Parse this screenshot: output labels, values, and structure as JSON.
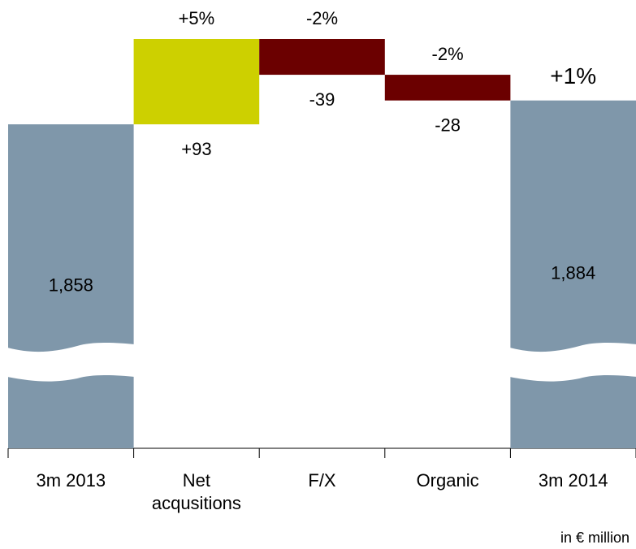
{
  "chart_data": {
    "type": "waterfall",
    "categories": [
      "3m 2013",
      "Net acqusitions",
      "F/X",
      "Organic",
      "3m 2014"
    ],
    "values": [
      1858,
      93,
      -39,
      -28,
      1884
    ],
    "value_labels": [
      "1,858",
      "+93",
      "-39",
      "-28",
      "1,884"
    ],
    "kinds": [
      "total",
      "delta",
      "delta",
      "delta",
      "total"
    ],
    "percent_labels": [
      null,
      "+5%",
      "-2%",
      "-2%",
      "+1%"
    ],
    "colors": [
      "#7f97aa",
      "#cdd000",
      "#6b0000",
      "#6b0000",
      "#7f97aa"
    ],
    "note": "in € million"
  }
}
